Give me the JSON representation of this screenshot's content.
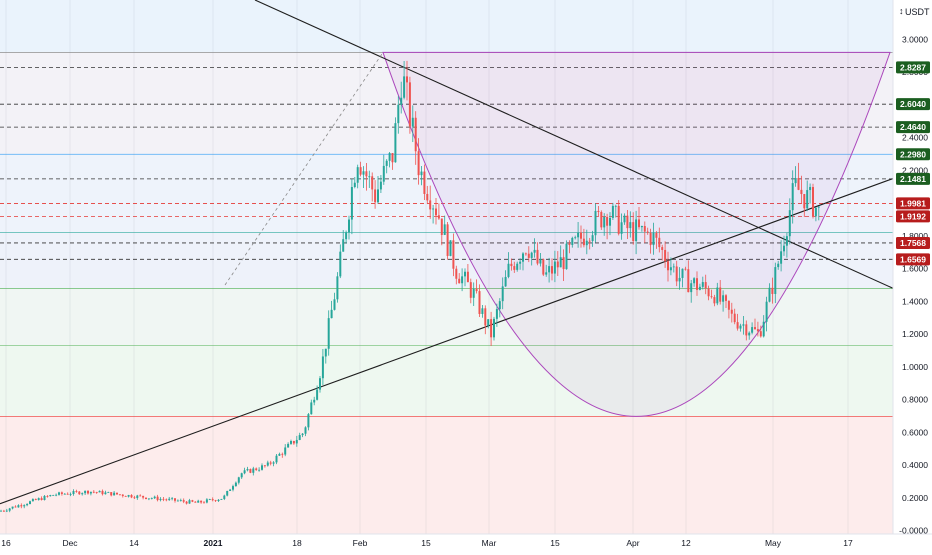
{
  "currency": "USDT",
  "colors": {
    "up": "#26a69a",
    "down": "#ef5350",
    "trendline": "#1e1e1e",
    "curve": "#ab47bc",
    "green_label": "#1b5e20",
    "red_label": "#b71c1c"
  },
  "chart_data": {
    "type": "candlestick",
    "x_ticks": [
      "16",
      "Dec",
      "14",
      "2021",
      "18",
      "Feb",
      "15",
      "Mar",
      "15",
      "Apr",
      "12",
      "May",
      "17"
    ],
    "y_ticks": [
      "3.0000",
      "2.8000",
      "2.6000",
      "2.4000",
      "2.2000",
      "2.0000",
      "1.8000",
      "1.6000",
      "1.4000",
      "1.2000",
      "1.0000",
      "0.8000",
      "0.6000",
      "0.4000",
      "0.2000",
      "-0.0000"
    ],
    "ylim": [
      -0.02,
      3.24
    ],
    "price_labels": [
      {
        "text": "2.8287",
        "value": 2.8287,
        "color": "green"
      },
      {
        "text": "2.6040",
        "value": 2.604,
        "color": "green"
      },
      {
        "text": "2.4640",
        "value": 2.464,
        "color": "green"
      },
      {
        "text": "2.2980",
        "value": 2.298,
        "color": "green"
      },
      {
        "text": "2.1481",
        "value": 2.1481,
        "color": "green"
      },
      {
        "text": "1.9981",
        "value": 1.9981,
        "color": "red"
      },
      {
        "text": "1.9192",
        "value": 1.9192,
        "color": "red"
      },
      {
        "text": "1.7568",
        "value": 1.7568,
        "color": "red"
      },
      {
        "text": "1.6569",
        "value": 1.6569,
        "color": "red"
      }
    ],
    "fib_levels": [
      2.92,
      2.298,
      1.82,
      1.478,
      1.13,
      0.698,
      -0.02
    ],
    "dashed_black": [
      2.8287,
      2.604,
      2.464,
      2.1481,
      1.7568,
      1.6569
    ],
    "dashed_red": [
      1.9981,
      1.9192
    ],
    "price_path": [
      {
        "x": 0.0,
        "y": 0.12
      },
      {
        "x": 0.06,
        "y": 0.22
      },
      {
        "x": 0.1,
        "y": 0.24
      },
      {
        "x": 0.17,
        "y": 0.2
      },
      {
        "x": 0.22,
        "y": 0.17
      },
      {
        "x": 0.25,
        "y": 0.2
      },
      {
        "x": 0.27,
        "y": 0.35
      },
      {
        "x": 0.3,
        "y": 0.4
      },
      {
        "x": 0.34,
        "y": 0.6
      },
      {
        "x": 0.36,
        "y": 1.0
      },
      {
        "x": 0.38,
        "y": 1.6
      },
      {
        "x": 0.4,
        "y": 2.3
      },
      {
        "x": 0.42,
        "y": 2.05
      },
      {
        "x": 0.44,
        "y": 2.3
      },
      {
        "x": 0.45,
        "y": 2.8
      },
      {
        "x": 0.47,
        "y": 2.2
      },
      {
        "x": 0.49,
        "y": 1.95
      },
      {
        "x": 0.51,
        "y": 1.6
      },
      {
        "x": 0.53,
        "y": 1.45
      },
      {
        "x": 0.55,
        "y": 1.2
      },
      {
        "x": 0.57,
        "y": 1.6
      },
      {
        "x": 0.59,
        "y": 1.75
      },
      {
        "x": 0.61,
        "y": 1.55
      },
      {
        "x": 0.63,
        "y": 1.65
      },
      {
        "x": 0.66,
        "y": 1.85
      },
      {
        "x": 0.68,
        "y": 1.95
      },
      {
        "x": 0.7,
        "y": 1.85
      },
      {
        "x": 0.73,
        "y": 1.8
      },
      {
        "x": 0.76,
        "y": 1.55
      },
      {
        "x": 0.8,
        "y": 1.45
      },
      {
        "x": 0.82,
        "y": 1.3
      },
      {
        "x": 0.85,
        "y": 1.2
      },
      {
        "x": 0.87,
        "y": 1.6
      },
      {
        "x": 0.89,
        "y": 2.1
      },
      {
        "x": 0.91,
        "y": 2.0
      },
      {
        "x": 0.92,
        "y": 1.92
      }
    ]
  }
}
